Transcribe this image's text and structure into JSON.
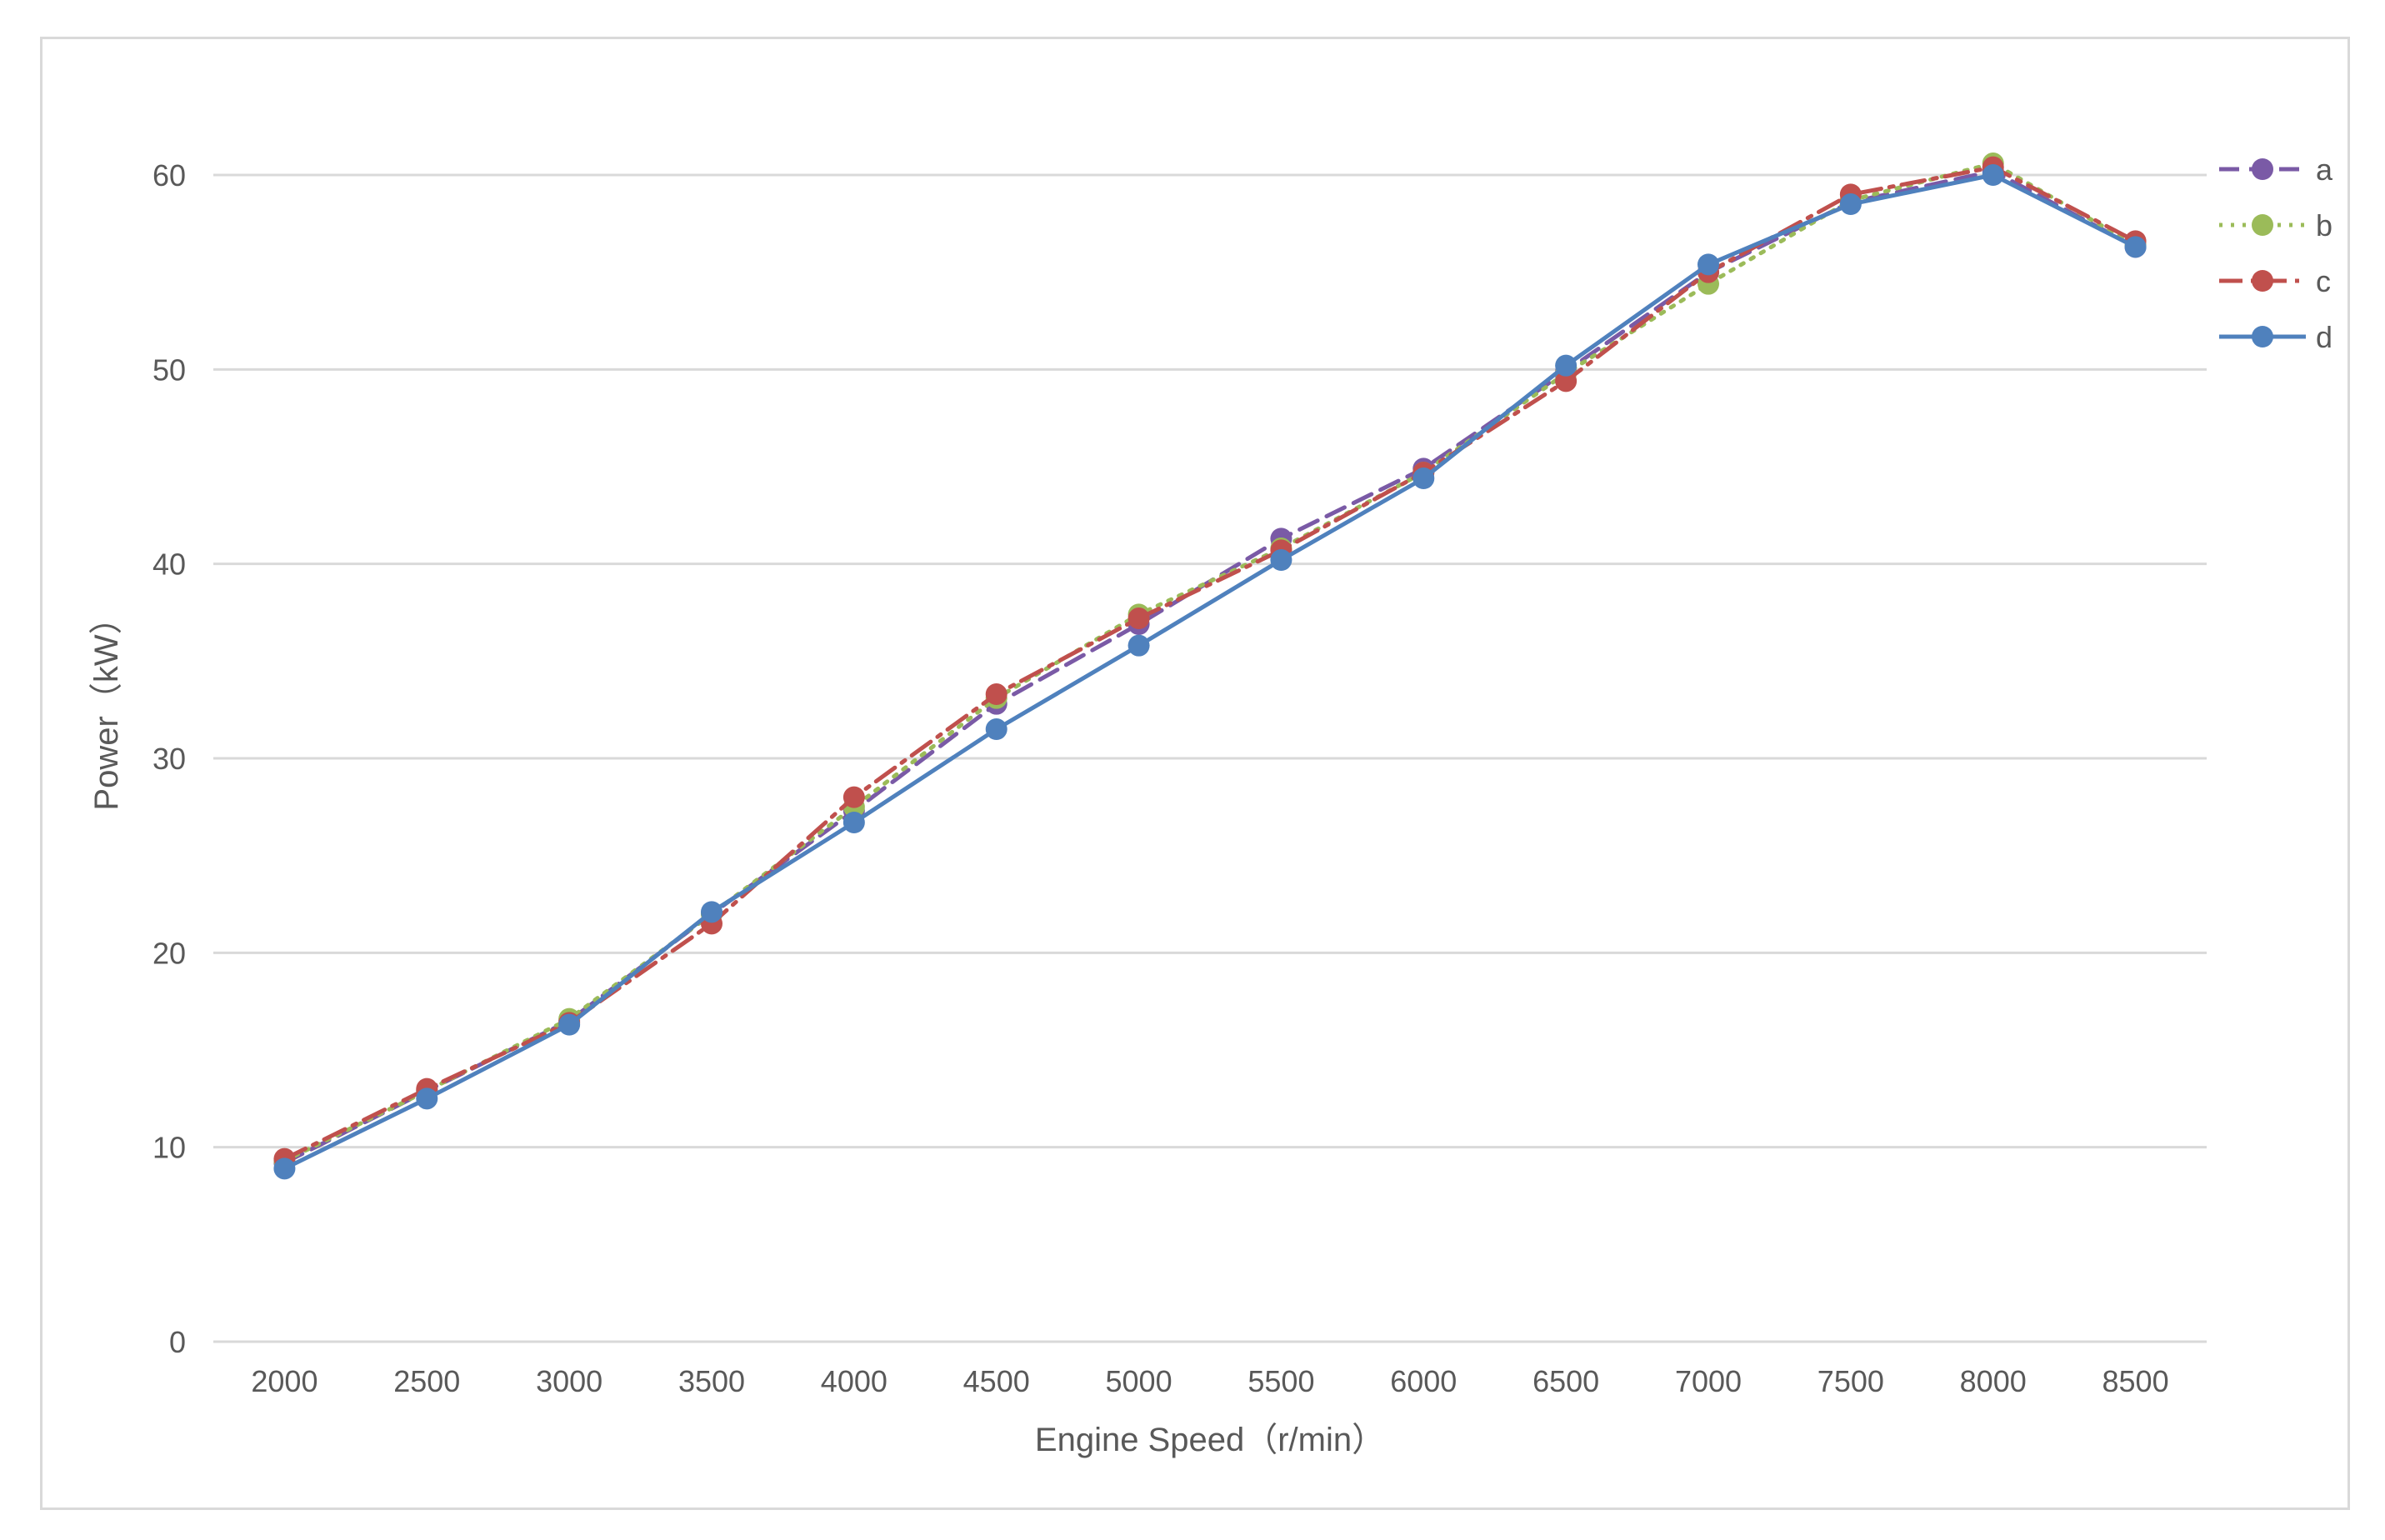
{
  "chart_data": {
    "type": "line",
    "title": "",
    "xlabel": "Engine Speed（r/min）",
    "ylabel": "Power（kW）",
    "categories": [
      "2000",
      "2500",
      "3000",
      "3500",
      "4000",
      "4500",
      "5000",
      "5500",
      "6000",
      "6500",
      "7000",
      "7500",
      "8000",
      "8500"
    ],
    "y_ticks": [
      "0",
      "10",
      "20",
      "30",
      "40",
      "50",
      "60"
    ],
    "ylim": [
      0,
      65
    ],
    "grid": "horizontal",
    "legend_position": "right",
    "series": [
      {
        "name": "a",
        "color": "#7a5aa6",
        "dash": "dashed",
        "values": [
          9.2,
          12.9,
          16.5,
          22.0,
          27.3,
          32.8,
          36.9,
          41.3,
          44.9,
          49.9,
          55.0,
          58.6,
          60.2,
          56.3
        ]
      },
      {
        "name": "b",
        "color": "#9bbb59",
        "dash": "dotted",
        "values": [
          9.3,
          12.9,
          16.6,
          22.0,
          27.5,
          33.1,
          37.4,
          40.8,
          44.7,
          49.8,
          54.4,
          58.7,
          60.6,
          56.4
        ]
      },
      {
        "name": "c",
        "color": "#c0504d",
        "dash": "dashdot",
        "values": [
          9.4,
          13.0,
          16.4,
          21.5,
          28.0,
          33.3,
          37.2,
          40.7,
          44.7,
          49.4,
          55.0,
          59.0,
          60.4,
          56.6
        ]
      },
      {
        "name": "d",
        "color": "#4f81bd",
        "dash": "solid",
        "values": [
          8.9,
          12.5,
          16.3,
          22.1,
          26.7,
          31.5,
          35.8,
          40.2,
          44.4,
          50.2,
          55.4,
          58.5,
          60.0,
          56.3
        ]
      }
    ]
  }
}
